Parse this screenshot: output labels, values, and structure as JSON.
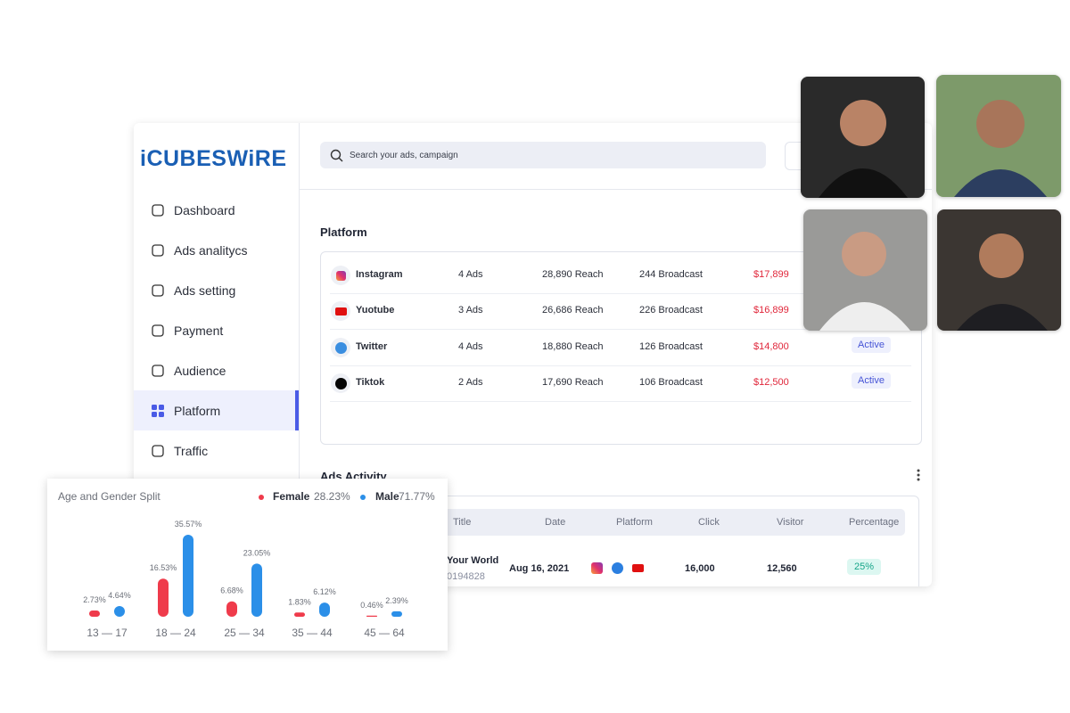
{
  "logo": "iCUBESWiRE",
  "nav": [
    "Dashboard",
    "Ads analitycs",
    "Ads setting",
    "Payment",
    "Audience",
    "Platform",
    "Traffic"
  ],
  "search_placeholder": "Search your ads, campaign",
  "platform": {
    "title": "Platform",
    "rows": [
      {
        "name": "Instagram",
        "ads": "4 Ads",
        "reach": "28,890 Reach",
        "broadcast": "244 Broadcast",
        "amount": "$17,899"
      },
      {
        "name": "Yuotube",
        "ads": "3 Ads",
        "reach": "26,686 Reach",
        "broadcast": "226 Broadcast",
        "amount": "$16,899"
      },
      {
        "name": "Twitter",
        "ads": "4 Ads",
        "reach": "18,880 Reach",
        "broadcast": "126 Broadcast",
        "amount": "$14,800",
        "status": "Active"
      },
      {
        "name": "Tiktok",
        "ads": "2 Ads",
        "reach": "17,690 Reach",
        "broadcast": "106 Broadcast",
        "amount": "$12,500",
        "status": "Active"
      }
    ]
  },
  "ads_activity": {
    "title": "Ads Activity",
    "columns": [
      "Title",
      "Date",
      "Platform",
      "Click",
      "Visitor",
      "Percentage"
    ],
    "rows": [
      {
        "title": "Your World",
        "id": "0194828",
        "date": "Aug 16, 2021",
        "click": "16,000",
        "visitor": "12,560",
        "percentage": "25%"
      }
    ]
  },
  "chart_data": {
    "type": "bar",
    "title": "Age and Gender Split",
    "categories": [
      "13 — 17",
      "18 — 24",
      "25 — 34",
      "35 — 44",
      "45 — 64"
    ],
    "series": [
      {
        "name": "Female",
        "color": "#ef3b4b",
        "share_label": "28.23%",
        "values": [
          2.73,
          16.53,
          6.68,
          1.83,
          0.46
        ],
        "value_labels": [
          "2.73%",
          "16.53%",
          "6.68%",
          "1.83%",
          "0.46%"
        ]
      },
      {
        "name": "Male",
        "color": "#2b8fe8",
        "share_label": "71.77%",
        "values": [
          4.64,
          35.57,
          23.05,
          6.12,
          2.39
        ],
        "value_labels": [
          "4.64%",
          "35.57%",
          "23.05%",
          "6.12%",
          "2.39%"
        ]
      }
    ]
  }
}
